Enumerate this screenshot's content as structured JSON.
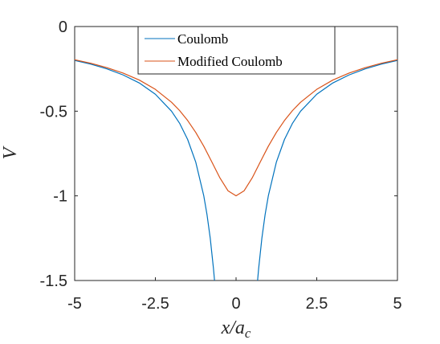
{
  "chart_data": {
    "type": "line",
    "xlabel_main": "x/a",
    "xlabel_sub": "c",
    "ylabel": "V",
    "xlim": [
      -5,
      5
    ],
    "ylim": [
      -1.5,
      0
    ],
    "xticks": [
      -5,
      -2.5,
      0,
      2.5,
      5
    ],
    "xtick_labels": [
      "-5",
      "-2.5",
      "0",
      "2.5",
      "5"
    ],
    "yticks": [
      0,
      -0.5,
      -1,
      -1.5
    ],
    "ytick_labels": [
      "0",
      "-0.5",
      "-1",
      "-1.5"
    ],
    "grid": false,
    "legend_position": "top-center",
    "series": [
      {
        "name": "Coulomb",
        "color": "#0072BD",
        "x": [
          -5,
          -4.5,
          -4,
          -3.5,
          -3,
          -2.5,
          -2,
          -1.75,
          -1.5,
          -1.25,
          -1,
          -0.9,
          -0.8,
          -0.7,
          -0.667,
          null,
          0.667,
          0.7,
          0.8,
          0.9,
          1,
          1.25,
          1.5,
          1.75,
          2,
          2.5,
          3,
          3.5,
          4,
          4.5,
          5
        ],
        "y": [
          -0.2,
          -0.222,
          -0.25,
          -0.286,
          -0.333,
          -0.4,
          -0.5,
          -0.571,
          -0.667,
          -0.8,
          -1.0,
          -1.111,
          -1.25,
          -1.429,
          -1.5,
          null,
          -1.5,
          -1.429,
          -1.25,
          -1.111,
          -1.0,
          -0.8,
          -0.667,
          -0.571,
          -0.5,
          -0.4,
          -0.333,
          -0.286,
          -0.25,
          -0.222,
          -0.2
        ]
      },
      {
        "name": "Modified Coulomb",
        "color": "#D95319",
        "x": [
          -5,
          -4.5,
          -4,
          -3.5,
          -3,
          -2.5,
          -2,
          -1.75,
          -1.5,
          -1.25,
          -1,
          -0.75,
          -0.5,
          -0.25,
          0,
          0.25,
          0.5,
          0.75,
          1,
          1.25,
          1.5,
          1.75,
          2,
          2.5,
          3,
          3.5,
          4,
          4.5,
          5
        ],
        "y": [
          -0.196,
          -0.217,
          -0.243,
          -0.275,
          -0.316,
          -0.371,
          -0.447,
          -0.496,
          -0.555,
          -0.625,
          -0.707,
          -0.8,
          -0.894,
          -0.97,
          -1.0,
          -0.97,
          -0.894,
          -0.8,
          -0.707,
          -0.625,
          -0.555,
          -0.496,
          -0.447,
          -0.371,
          -0.316,
          -0.275,
          -0.243,
          -0.217,
          -0.196
        ]
      }
    ]
  }
}
